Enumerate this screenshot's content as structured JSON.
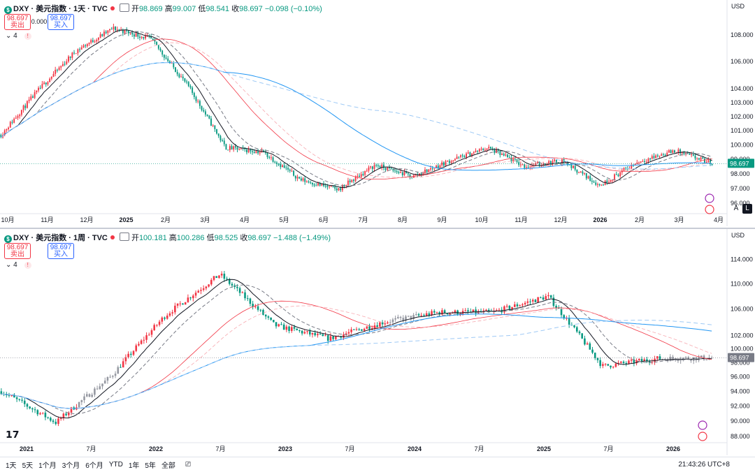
{
  "top": {
    "symbol": "DXY · 美元指数 · 1天 · TVC",
    "ohlc": {
      "o_label": "开",
      "o": "98.869",
      "h_label": "高",
      "h": "99.007",
      "l_label": "低",
      "l": "98.541",
      "c_label": "收",
      "c": "98.697",
      "chg": "−0.098 (−0.10%)"
    },
    "sell": {
      "price": "98.697",
      "label": "卖出"
    },
    "buy": {
      "price": "98.697",
      "label": "买入"
    },
    "spread": "0.000",
    "indicators_count": "4",
    "currency": "USD",
    "last_price": "98.697",
    "buttons": {
      "auto": "A",
      "log": "L"
    }
  },
  "bottom": {
    "symbol": "DXY · 美元指数 · 1周 · TVC",
    "ohlc": {
      "o_label": "开",
      "o": "100.181",
      "h_label": "高",
      "h": "100.286",
      "l_label": "低",
      "l": "98.525",
      "c_label": "收",
      "c": "98.697",
      "chg": "−1.488 (−1.49%)"
    },
    "sell": {
      "price": "98.697",
      "label": "卖出"
    },
    "buy": {
      "price": "98.697",
      "label": "买入"
    },
    "spread": "",
    "indicators_count": "4",
    "currency": "USD",
    "last_price": "98.697"
  },
  "bottombar": {
    "ranges": [
      "1天",
      "5天",
      "1个月",
      "3个月",
      "6个月",
      "YTD",
      "1年",
      "5年",
      "全部"
    ],
    "clock": "21:43:26 UTC+8"
  },
  "colors": {
    "up": "#f23645",
    "down": "#089981",
    "ma_black": "#131722",
    "ma_red": "#f23645",
    "ma_blue": "#2196f3",
    "price_tag_top": "#089981",
    "price_tag_bot": "#787b86"
  },
  "chart_data": [
    {
      "type": "candlestick",
      "interval": "1D",
      "y_ticks": [
        96,
        97,
        98,
        99,
        100,
        101,
        102,
        103,
        104,
        106,
        108
      ],
      "y_tick_labels": [
        "96.000",
        "97.000",
        "98.000",
        "99.000",
        "100.000",
        "101.000",
        "102.000",
        "103.000",
        "104.000",
        "106.000",
        "108.000"
      ],
      "ylim": [
        95.3,
        109.7
      ],
      "y_scale": "log",
      "x_tick_labels": [
        "10月",
        "11月",
        "12月",
        "2025",
        "2月",
        "3月",
        "4月",
        "5月",
        "6月",
        "7月",
        "8月",
        "9月",
        "10月",
        "11月",
        "12月",
        "2026",
        "2月",
        "3月",
        "4月"
      ],
      "x_tick_positions": [
        0,
        1,
        2,
        3,
        4,
        5,
        6,
        7,
        8,
        9,
        10,
        11,
        12,
        13,
        14,
        15,
        16,
        17,
        18
      ],
      "monthly_path": [
        100.7,
        103.9,
        106.8,
        108.5,
        107.7,
        104.2,
        99.8,
        99.5,
        97.6,
        96.9,
        98.6,
        97.8,
        98.9,
        99.8,
        98.5,
        98.9,
        97.2,
        98.8,
        99.6,
        98.7
      ]
    },
    {
      "type": "candlestick",
      "interval": "1W",
      "y_ticks": [
        88,
        90,
        92,
        94,
        96,
        98,
        100,
        102,
        106,
        110,
        114
      ],
      "y_tick_labels": [
        "88.000",
        "90.000",
        "92.000",
        "94.000",
        "96.000",
        "98.000",
        "100.000",
        "102.000",
        "106.000",
        "110.000",
        "114.000"
      ],
      "ylim": [
        87.2,
        116.5
      ],
      "y_scale": "log",
      "x_tick_labels": [
        "2021",
        "7月",
        "2022",
        "7月",
        "2023",
        "7月",
        "2024",
        "7月",
        "2025",
        "7月",
        "2026"
      ],
      "x_tick_positions": [
        0,
        1,
        2,
        3,
        4,
        5,
        6,
        7,
        8,
        9,
        10
      ],
      "halfyear_path": [
        94.0,
        89.8,
        96.0,
        105.0,
        111.5,
        103.5,
        101.5,
        104.0,
        105.5,
        105.5,
        108.0,
        97.5,
        98.6,
        98.7
      ]
    }
  ]
}
